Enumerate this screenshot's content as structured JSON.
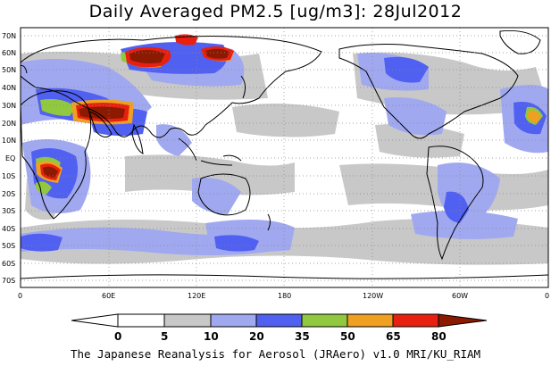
{
  "title": "Daily Averaged PM2.5 [ug/m3]: 28Jul2012",
  "credit": "The Japanese Reanalysis for Aerosol (JRAero) v1.0 MRI/KU_RIAM",
  "map": {
    "lat_labels": [
      "70N",
      "60N",
      "50N",
      "40N",
      "30N",
      "20N",
      "10N",
      "EQ",
      "10S",
      "20S",
      "30S",
      "40S",
      "50S",
      "60S",
      "70S"
    ],
    "lon_labels": [
      "0",
      "60E",
      "120E",
      "180",
      "120W",
      "60W",
      "0"
    ]
  },
  "colorbar": {
    "labels": [
      "0",
      "5",
      "10",
      "20",
      "35",
      "50",
      "65",
      "80"
    ],
    "colors": [
      "#ffffff",
      "#c8c8c8",
      "#a0a8f0",
      "#5060f0",
      "#90c840",
      "#f0a020",
      "#e82010",
      "#8b1a00"
    ]
  },
  "palette": {
    "land_line": "#000000",
    "grid_line": "#888888",
    "low": "#c8c8c8",
    "mid": "#a0a8f0",
    "blue": "#5060f0",
    "green": "#90c840",
    "orange": "#f0a020",
    "red": "#e82010",
    "darkred": "#8b1a00"
  }
}
